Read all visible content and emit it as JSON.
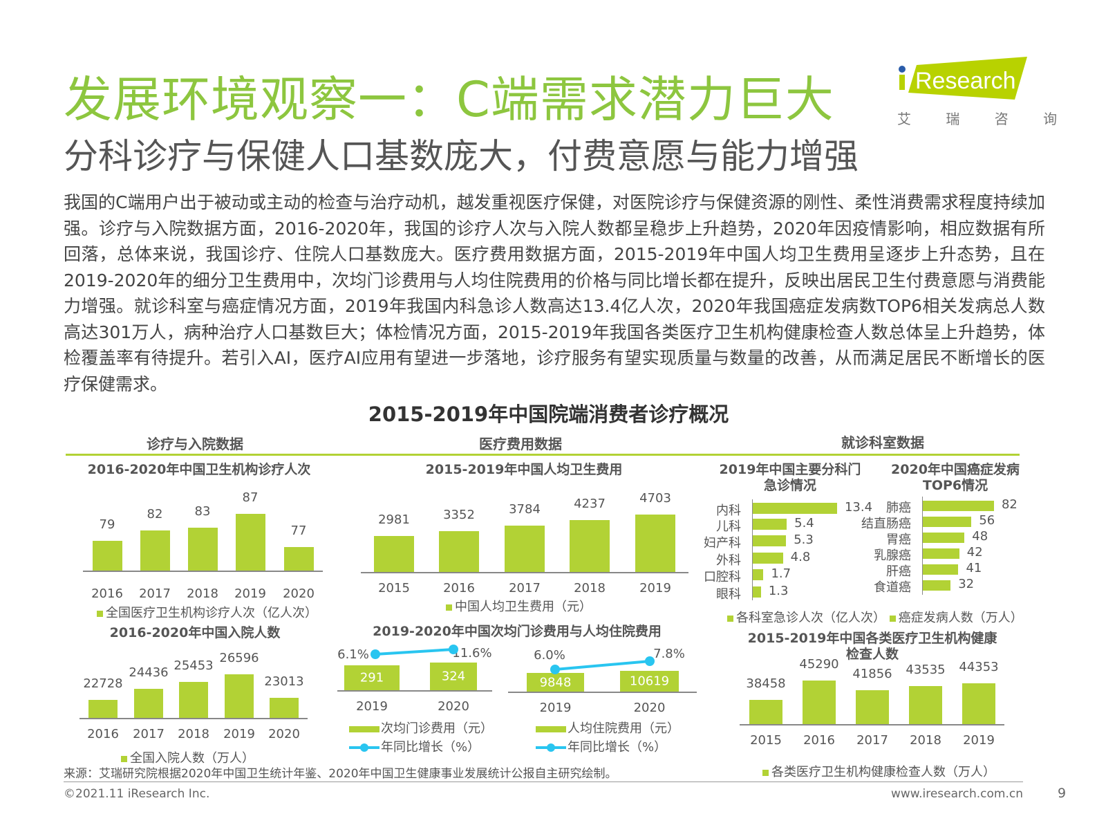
{
  "header": {
    "title": "发展环境观察一：C端需求潜力巨大",
    "subtitle": "分科诊疗与保健人口基数庞大，付费意愿与能力增强",
    "logo_text": "iResearch",
    "logo_cn": "艾 瑞 咨 询",
    "brand_color": "#8dc63f"
  },
  "paragraph": "我国的C端用户出于被动或主动的检查与治疗动机，越发重视医疗保健，对医院诊疗与保健资源的刚性、柔性消费需求程度持续加强。诊疗与入院数据方面，2016-2020年，我国的诊疗人次与入院人数都呈稳步上升趋势，2020年因疫情影响，相应数据有所回落，总体来说，我国诊疗、住院人口基数庞大。医疗费用数据方面，2015-2019年中国人均卫生费用呈逐步上升态势，且在2019-2020年的细分卫生费用中，次均门诊费用与人均住院费用的价格与同比增长都在提升，反映出居民卫生付费意愿与消费能力增强。就诊科室与癌症情况方面，2019年我国内科急诊人数高达13.4亿人次，2020年我国癌症发病数TOP6相关发病总人数高达301万人，病种治疗人口基数巨大；体检情况方面，2015-2019年我国各类医疗卫生机构健康检查人数总体呈上升趋势，体检覆盖率有待提升。若引入AI，医疗AI应用有望进一步落地，诊疗服务有望实现质量与数量的改善，从而满足居民不断增长的医疗保健需求。",
  "figure_title": "2015-2019年中国院端消费者诊疗概况",
  "sections": [
    "诊疗与入院数据",
    "医疗费用数据",
    "就诊科室数据"
  ],
  "colors": {
    "bar": "#b2d235",
    "line": "#29c5f0"
  },
  "chart_data": [
    {
      "id": "visits",
      "type": "bar",
      "title": "2016-2020年中国卫生机构诊疗人次",
      "categories": [
        "2016",
        "2017",
        "2018",
        "2019",
        "2020"
      ],
      "values": [
        79,
        82,
        83,
        87,
        77
      ],
      "legend": "全国医疗卫生机构诊疗人次（亿人次）",
      "ylim": [
        70,
        90
      ]
    },
    {
      "id": "admissions",
      "type": "bar",
      "title": "2016-2020年中国入院人数",
      "categories": [
        "2016",
        "2017",
        "2018",
        "2019",
        "2020"
      ],
      "values": [
        22728,
        24436,
        25453,
        26596,
        23013
      ],
      "legend": "全国入院人数（万人）",
      "ylim": [
        20000,
        28000
      ]
    },
    {
      "id": "percapita",
      "type": "bar",
      "title": "2015-2019年中国人均卫生费用",
      "categories": [
        "2015",
        "2016",
        "2017",
        "2018",
        "2019"
      ],
      "values": [
        2981,
        3352,
        3784,
        4237,
        4703
      ],
      "legend": "中国人均卫生费用（元）",
      "ylim": [
        0,
        5000
      ]
    },
    {
      "id": "outpatient",
      "type": "bar+line",
      "title": "2019-2020年中国次均门诊费用与人均住院费用",
      "categories": [
        "2019",
        "2020"
      ],
      "values": [
        291,
        324
      ],
      "growth": [
        "6.1%",
        "11.6%"
      ],
      "growth_values": [
        6.1,
        11.6
      ],
      "legend": "次均门诊费用（元）",
      "line_legend": "年同比增长（%）"
    },
    {
      "id": "inpatient",
      "type": "bar+line",
      "categories": [
        "2019",
        "2020"
      ],
      "values": [
        9848,
        10619
      ],
      "growth": [
        "6.0%",
        "7.8%"
      ],
      "growth_values": [
        6.0,
        7.8
      ],
      "legend": "人均住院费用（元）",
      "line_legend": "年同比增长（%）"
    },
    {
      "id": "dept",
      "type": "hbar",
      "title": "2019年中国主要分科门急诊情况",
      "categories": [
        "内科",
        "儿科",
        "妇产科",
        "外科",
        "口腔科",
        "眼科"
      ],
      "values": [
        13.4,
        5.4,
        5.3,
        4.8,
        1.7,
        1.3
      ],
      "legend": "各科室急诊人次（亿人次）"
    },
    {
      "id": "cancer",
      "type": "hbar",
      "title": "2020年中国癌症发病TOP6情况",
      "categories": [
        "肺癌",
        "结直肠癌",
        "胃癌",
        "乳腺癌",
        "肝癌",
        "食道癌"
      ],
      "values": [
        82,
        56,
        48,
        42,
        41,
        32
      ],
      "legend": "癌症发病人数（万人）"
    },
    {
      "id": "checkup",
      "type": "bar",
      "title": "2015-2019年中国各类医疗卫生机构健康检查人数",
      "categories": [
        "2015",
        "2016",
        "2017",
        "2018",
        "2019"
      ],
      "values": [
        38458,
        45290,
        41856,
        43535,
        44353
      ],
      "legend": "各类医疗卫生机构健康检查人数（万人）",
      "ylim": [
        30000,
        47000
      ]
    }
  ],
  "footer": {
    "source": "来源：艾瑞研究院根据2020年中国卫生统计年鉴、2020年中国卫生健康事业发展统计公报自主研究绘制。",
    "copyright": "©2021.11 iResearch Inc.",
    "website": "www.iresearch.com.cn",
    "page": "9"
  }
}
